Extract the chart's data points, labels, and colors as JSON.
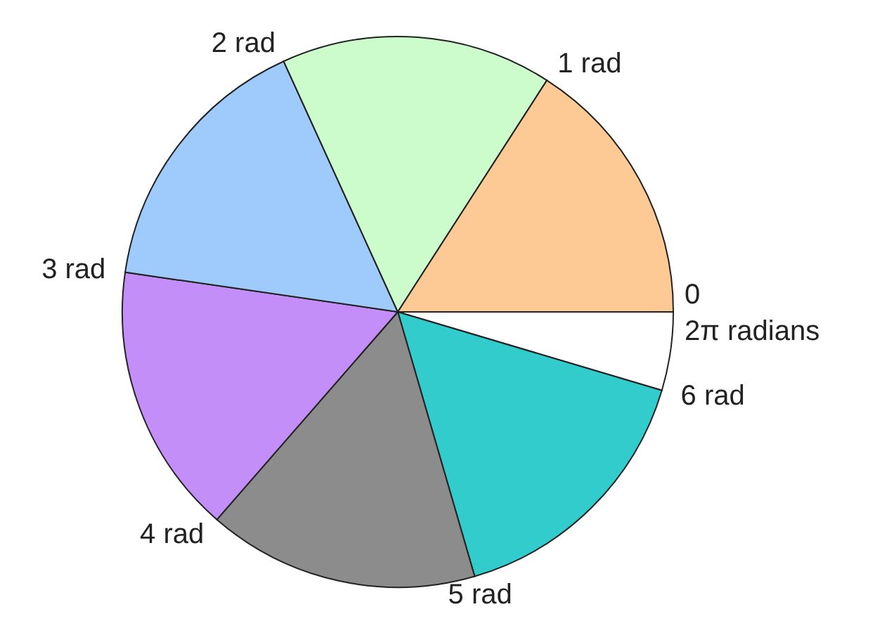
{
  "chart_data": {
    "type": "pie",
    "categories": [
      null,
      null,
      null,
      null,
      null,
      null,
      null
    ],
    "values": [
      4.6,
      15.9,
      15.9,
      15.9,
      15.9,
      15.9,
      15.9
    ],
    "colors": [
      "#ffffff",
      "#33cccc",
      "#8c8c8c",
      "#c48ef9",
      "#9ecbfb",
      "#ccfccc",
      "#fdc994"
    ],
    "annotations": [
      "0",
      "1 rad",
      "2 rad",
      "3 rad",
      "4 rad",
      "5 rad",
      "6 rad",
      "2π radians"
    ]
  }
}
